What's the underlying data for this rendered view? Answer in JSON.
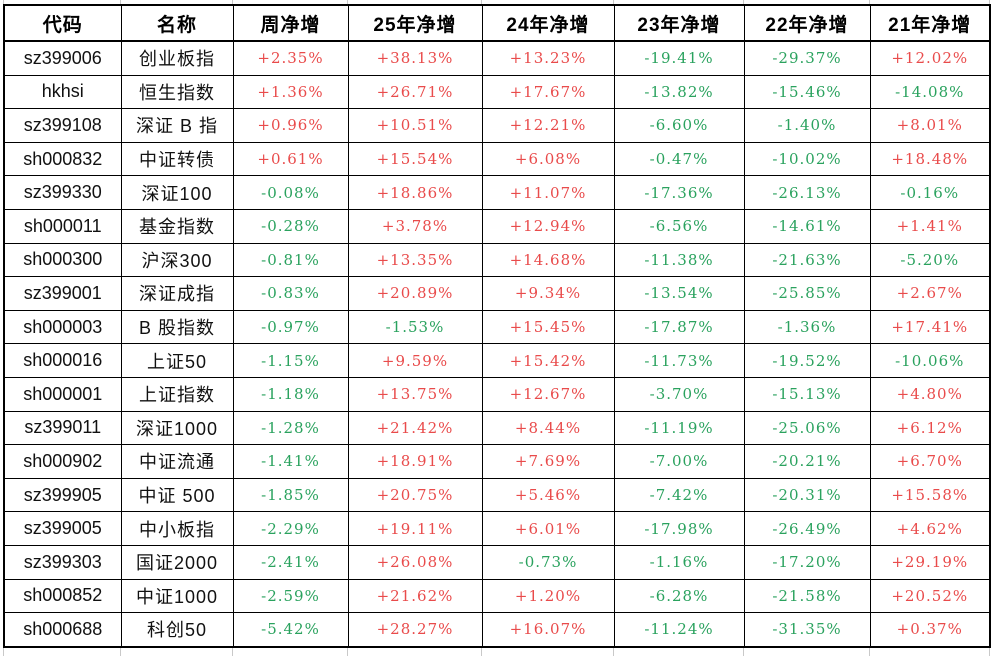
{
  "colors": {
    "positive": "#e94b4b",
    "negative": "#2aa25e",
    "border": "#000000",
    "gridline": "#c9c9c9",
    "header_text": "#000000"
  },
  "table": {
    "headers": [
      "代码",
      "名称",
      "周净增",
      "25年净增",
      "24年净增",
      "23年净增",
      "22年净增",
      "21年净增"
    ],
    "rows": [
      {
        "code": "sz399006",
        "name": "创业板指",
        "values": [
          "+2.35%",
          "+38.13%",
          "+13.23%",
          "-19.41%",
          "-29.37%",
          "+12.02%"
        ]
      },
      {
        "code": "hkhsi",
        "name": "恒生指数",
        "values": [
          "+1.36%",
          "+26.71%",
          "+17.67%",
          "-13.82%",
          "-15.46%",
          "-14.08%"
        ]
      },
      {
        "code": "sz399108",
        "name": "深证 B 指",
        "values": [
          "+0.96%",
          "+10.51%",
          "+12.21%",
          "-6.60%",
          "-1.40%",
          "+8.01%"
        ]
      },
      {
        "code": "sh000832",
        "name": "中证转债",
        "values": [
          "+0.61%",
          "+15.54%",
          "+6.08%",
          "-0.47%",
          "-10.02%",
          "+18.48%"
        ]
      },
      {
        "code": "sz399330",
        "name": "深证100",
        "values": [
          "-0.08%",
          "+18.86%",
          "+11.07%",
          "-17.36%",
          "-26.13%",
          "-0.16%"
        ]
      },
      {
        "code": "sh000011",
        "name": "基金指数",
        "values": [
          "-0.28%",
          "+3.78%",
          "+12.94%",
          "-6.56%",
          "-14.61%",
          "+1.41%"
        ]
      },
      {
        "code": "sh000300",
        "name": "沪深300",
        "values": [
          "-0.81%",
          "+13.35%",
          "+14.68%",
          "-11.38%",
          "-21.63%",
          "-5.20%"
        ]
      },
      {
        "code": "sz399001",
        "name": "深证成指",
        "values": [
          "-0.83%",
          "+20.89%",
          "+9.34%",
          "-13.54%",
          "-25.85%",
          "+2.67%"
        ]
      },
      {
        "code": "sh000003",
        "name": "B 股指数",
        "values": [
          "-0.97%",
          "-1.53%",
          "+15.45%",
          "-17.87%",
          "-1.36%",
          "+17.41%"
        ]
      },
      {
        "code": "sh000016",
        "name": "上证50",
        "values": [
          "-1.15%",
          "+9.59%",
          "+15.42%",
          "-11.73%",
          "-19.52%",
          "-10.06%"
        ]
      },
      {
        "code": "sh000001",
        "name": "上证指数",
        "values": [
          "-1.18%",
          "+13.75%",
          "+12.67%",
          "-3.70%",
          "-15.13%",
          "+4.80%"
        ]
      },
      {
        "code": "sz399011",
        "name": "深证1000",
        "values": [
          "-1.28%",
          "+21.42%",
          "+8.44%",
          "-11.19%",
          "-25.06%",
          "+6.12%"
        ]
      },
      {
        "code": "sh000902",
        "name": "中证流通",
        "values": [
          "-1.41%",
          "+18.91%",
          "+7.69%",
          "-7.00%",
          "-20.21%",
          "+6.70%"
        ]
      },
      {
        "code": "sz399905",
        "name": "中证 500",
        "values": [
          "-1.85%",
          "+20.75%",
          "+5.46%",
          "-7.42%",
          "-20.31%",
          "+15.58%"
        ]
      },
      {
        "code": "sz399005",
        "name": "中小板指",
        "values": [
          "-2.29%",
          "+19.11%",
          "+6.01%",
          "-17.98%",
          "-26.49%",
          "+4.62%"
        ]
      },
      {
        "code": "sz399303",
        "name": "国证2000",
        "values": [
          "-2.41%",
          "+26.08%",
          "-0.73%",
          "-1.16%",
          "-17.20%",
          "+29.19%"
        ]
      },
      {
        "code": "sh000852",
        "name": "中证1000",
        "values": [
          "-2.59%",
          "+21.62%",
          "+1.20%",
          "-6.28%",
          "-21.58%",
          "+20.52%"
        ]
      },
      {
        "code": "sh000688",
        "name": "科创50",
        "values": [
          "-5.42%",
          "+28.27%",
          "+16.07%",
          "-11.24%",
          "-31.35%",
          "+0.37%"
        ]
      }
    ]
  }
}
